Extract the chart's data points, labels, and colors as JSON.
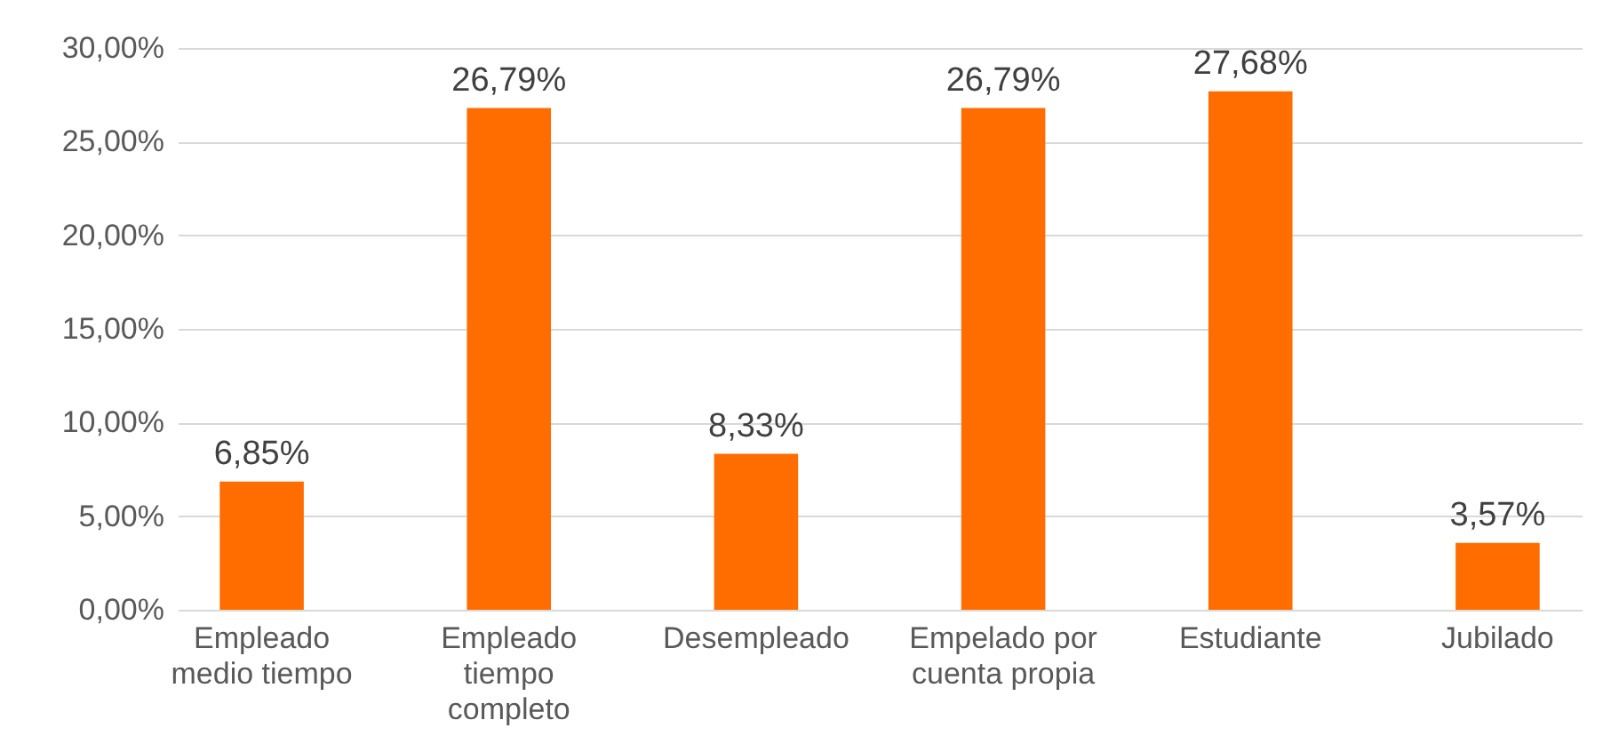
{
  "chart_data": {
    "type": "bar",
    "categories": [
      "Empleado medio tiempo",
      "Empleado tiempo completo",
      "Desempleado",
      "Empelado por cuenta propia",
      "Estudiante",
      "Jubilado"
    ],
    "values": [
      6.85,
      26.79,
      8.33,
      26.79,
      27.68,
      3.57
    ],
    "value_labels": [
      "6,85%",
      "26,79%",
      "8,33%",
      "26,79%",
      "27,68%",
      "3,57%"
    ],
    "color": "#ff6d00",
    "ylim": [
      0,
      30
    ],
    "yticks": [
      {
        "value": 0,
        "label": "0,00%"
      },
      {
        "value": 5,
        "label": "5,00%"
      },
      {
        "value": 10,
        "label": "10,00%"
      },
      {
        "value": 15,
        "label": "15,00%"
      },
      {
        "value": 20,
        "label": "20,00%"
      },
      {
        "value": 25,
        "label": "25,00%"
      },
      {
        "value": 30,
        "label": "30,00%"
      }
    ],
    "grid": "y"
  }
}
